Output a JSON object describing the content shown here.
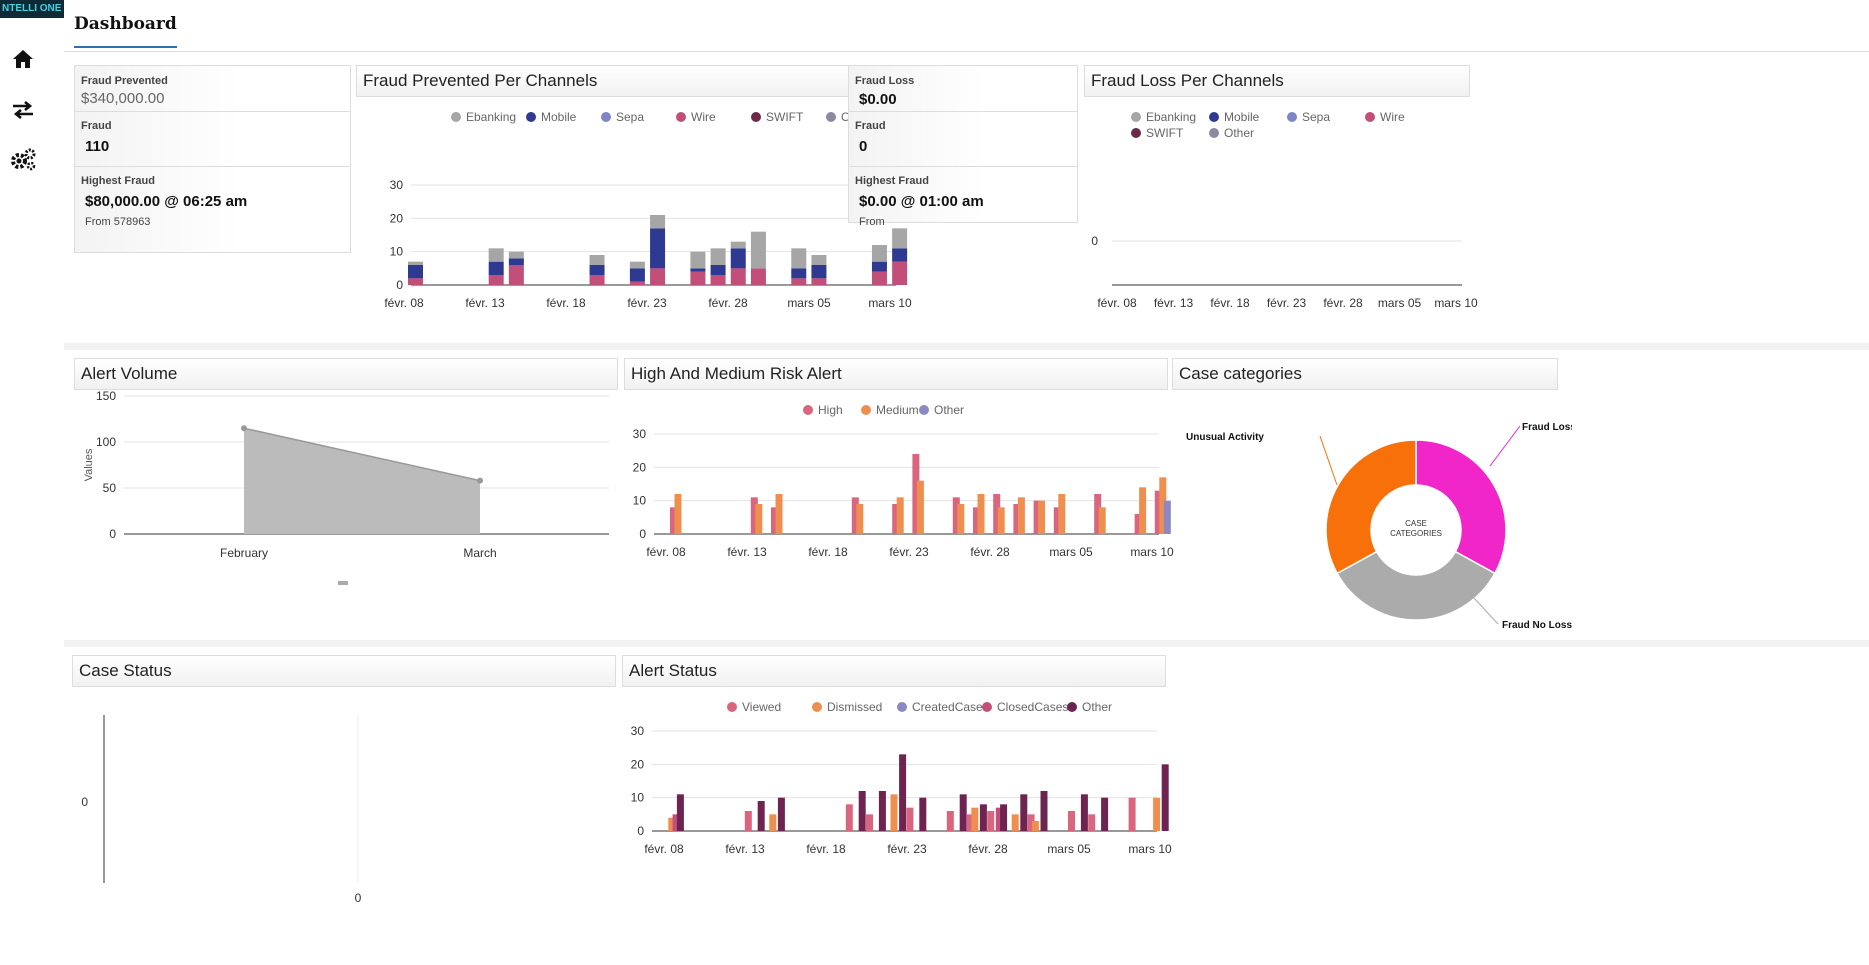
{
  "app": {
    "logo_text": "NTELLI ONE"
  },
  "sidebar": {
    "items": [
      {
        "label": "home",
        "icon": "home-icon"
      },
      {
        "label": "transactions",
        "icon": "exchange-arrows-icon"
      },
      {
        "label": "settings",
        "icon": "gears-icon"
      }
    ]
  },
  "header": {
    "tab_label": "Dashboard"
  },
  "fraud_prevented_stats": {
    "prevented_label": "Fraud Prevented",
    "prevented_value": "$340,000.00",
    "fraud_label": "Fraud",
    "fraud_value": "110",
    "highest_label": "Highest Fraud",
    "highest_value": "$80,000.00 @ 06:25 am",
    "highest_from": "From 578963"
  },
  "fraud_loss_stats": {
    "loss_label": "Fraud Loss",
    "loss_value": "$0.00",
    "fraud_label": "Fraud",
    "fraud_value": "0",
    "highest_label": "Highest Fraud",
    "highest_value": "$0.00 @ 01:00 am",
    "highest_from": "From"
  },
  "panels": {
    "fraud_prevented_channels": "Fraud Prevented Per Channels",
    "fraud_loss_channels": "Fraud Loss Per Channels",
    "alert_volume": "Alert Volume",
    "high_medium_risk": "High And Medium Risk Alert",
    "case_categories": "Case categories",
    "case_status": "Case Status",
    "alert_status": "Alert Status"
  },
  "colors": {
    "ebanking": "#a6a6a6",
    "mobile": "#2e3a91",
    "sepa": "#7f86c4",
    "wire": "#c24f7a",
    "swift": "#6b2a4a",
    "other_channel": "#8c8aa3",
    "high": "#d9667e",
    "medium": "#ee8f4f",
    "other_risk": "#8b88c2",
    "viewed": "#d9667e",
    "dismissed": "#ee8f4f",
    "createdcase": "#8b88c2",
    "closedcases": "#c24f7a",
    "other_status": "#6e2450",
    "fraud_loss": "#f026c9",
    "fraud_no_loss": "#ababab",
    "unusual_activity": "#f7700a",
    "area": "#bcbbbc"
  },
  "chart_data": [
    {
      "id": "fraud_prevented_channels",
      "type": "bar",
      "stacked": true,
      "xlabel": "",
      "ylabel": "",
      "ylim": [
        0,
        30
      ],
      "yticks": [
        0,
        10,
        20,
        30
      ],
      "x_ticks": [
        "févr. 08",
        "févr. 13",
        "févr. 18",
        "févr. 23",
        "févr. 28",
        "mars 05",
        "mars 10"
      ],
      "legend": [
        "Ebanking",
        "Mobile",
        "Sepa",
        "Wire",
        "SWIFT",
        "Other"
      ],
      "x_positions": [
        0,
        4,
        5,
        9,
        11,
        12,
        14,
        15,
        16,
        17,
        19,
        20,
        23,
        24
      ],
      "series": [
        {
          "name": "Wire",
          "values": [
            2,
            3,
            6,
            3,
            1,
            5,
            4,
            3,
            5,
            5,
            2,
            2,
            4,
            7
          ]
        },
        {
          "name": "Mobile",
          "values": [
            4,
            4,
            2,
            3,
            4,
            12,
            1,
            3,
            6,
            0,
            3,
            4,
            3,
            4
          ]
        },
        {
          "name": "Ebanking",
          "values": [
            1,
            4,
            2,
            3,
            2,
            4,
            5,
            5,
            2,
            11,
            6,
            3,
            5,
            6
          ]
        }
      ]
    },
    {
      "id": "fraud_loss_channels",
      "type": "bar",
      "legend": [
        "Ebanking",
        "Mobile",
        "Sepa",
        "Wire",
        "SWIFT",
        "Other"
      ],
      "yticks": [
        0
      ],
      "x_ticks": [
        "févr. 08",
        "févr. 13",
        "févr. 18",
        "févr. 23",
        "févr. 28",
        "mars 05",
        "mars 10"
      ],
      "series": []
    },
    {
      "id": "alert_volume",
      "type": "area",
      "categories": [
        "February",
        "March"
      ],
      "values": [
        115,
        58
      ],
      "ylabel": "Values",
      "ylim": [
        0,
        150
      ],
      "yticks": [
        0,
        50,
        100,
        150
      ]
    },
    {
      "id": "high_medium_risk",
      "type": "bar",
      "legend": [
        "High",
        "Medium",
        "Other"
      ],
      "ylim": [
        0,
        30
      ],
      "yticks": [
        0,
        10,
        20,
        30
      ],
      "x_ticks": [
        "févr. 08",
        "févr. 13",
        "févr. 18",
        "févr. 23",
        "févr. 28",
        "mars 05",
        "mars 10"
      ],
      "x_positions": [
        0,
        4,
        5,
        9,
        11,
        12,
        14,
        15,
        16,
        17,
        18,
        19,
        21,
        23,
        24
      ],
      "series": [
        {
          "name": "High",
          "values": [
            8,
            11,
            8,
            11,
            9,
            24,
            11,
            8,
            12,
            9,
            10,
            8,
            12,
            6,
            13
          ]
        },
        {
          "name": "Medium",
          "values": [
            12,
            9,
            12,
            9,
            11,
            16,
            9,
            12,
            8,
            11,
            10,
            12,
            8,
            14,
            17
          ]
        },
        {
          "name": "Other",
          "values": [
            0,
            0,
            0,
            0,
            0,
            0,
            0,
            0,
            0,
            0,
            0,
            0,
            0,
            0,
            10
          ]
        }
      ]
    },
    {
      "id": "case_categories",
      "type": "pie",
      "center_label": "CASE CATEGORIES",
      "categories": [
        "Fraud Loss",
        "Fraud No Loss",
        "Unusual Activity"
      ],
      "values": [
        33,
        34,
        33
      ]
    },
    {
      "id": "case_status",
      "type": "bar",
      "yticks": [
        0
      ],
      "x_ticks": [
        "0"
      ],
      "series": []
    },
    {
      "id": "alert_status",
      "type": "bar",
      "legend": [
        "Viewed",
        "Dismissed",
        "CreatedCase",
        "ClosedCases",
        "Other"
      ],
      "ylim": [
        0,
        30
      ],
      "yticks": [
        0,
        10,
        20,
        30
      ],
      "x_ticks": [
        "févr. 08",
        "févr. 13",
        "févr. 18",
        "févr. 23",
        "févr. 28",
        "mars 05",
        "mars 10"
      ],
      "x_positions": [
        0,
        4,
        5,
        9,
        10,
        11,
        12,
        14,
        15,
        16,
        17,
        18,
        20,
        21,
        23,
        24
      ],
      "series": [
        {
          "name": "Viewed",
          "values": [
            0,
            6,
            0,
            8,
            5,
            0,
            7,
            6,
            5,
            6,
            0,
            5,
            6,
            5,
            10,
            0
          ]
        },
        {
          "name": "Dismissed",
          "values": [
            4,
            0,
            5,
            0,
            0,
            11,
            0,
            0,
            7,
            0,
            5,
            3,
            0,
            0,
            0,
            10
          ]
        },
        {
          "name": "ClosedCases",
          "values": [
            5,
            0,
            0,
            0,
            0,
            0,
            0,
            0,
            0,
            7,
            0,
            0,
            0,
            0,
            0,
            0
          ]
        },
        {
          "name": "Other",
          "values": [
            11,
            9,
            10,
            12,
            12,
            23,
            10,
            11,
            8,
            8,
            11,
            12,
            11,
            10,
            0,
            20
          ]
        }
      ]
    }
  ]
}
